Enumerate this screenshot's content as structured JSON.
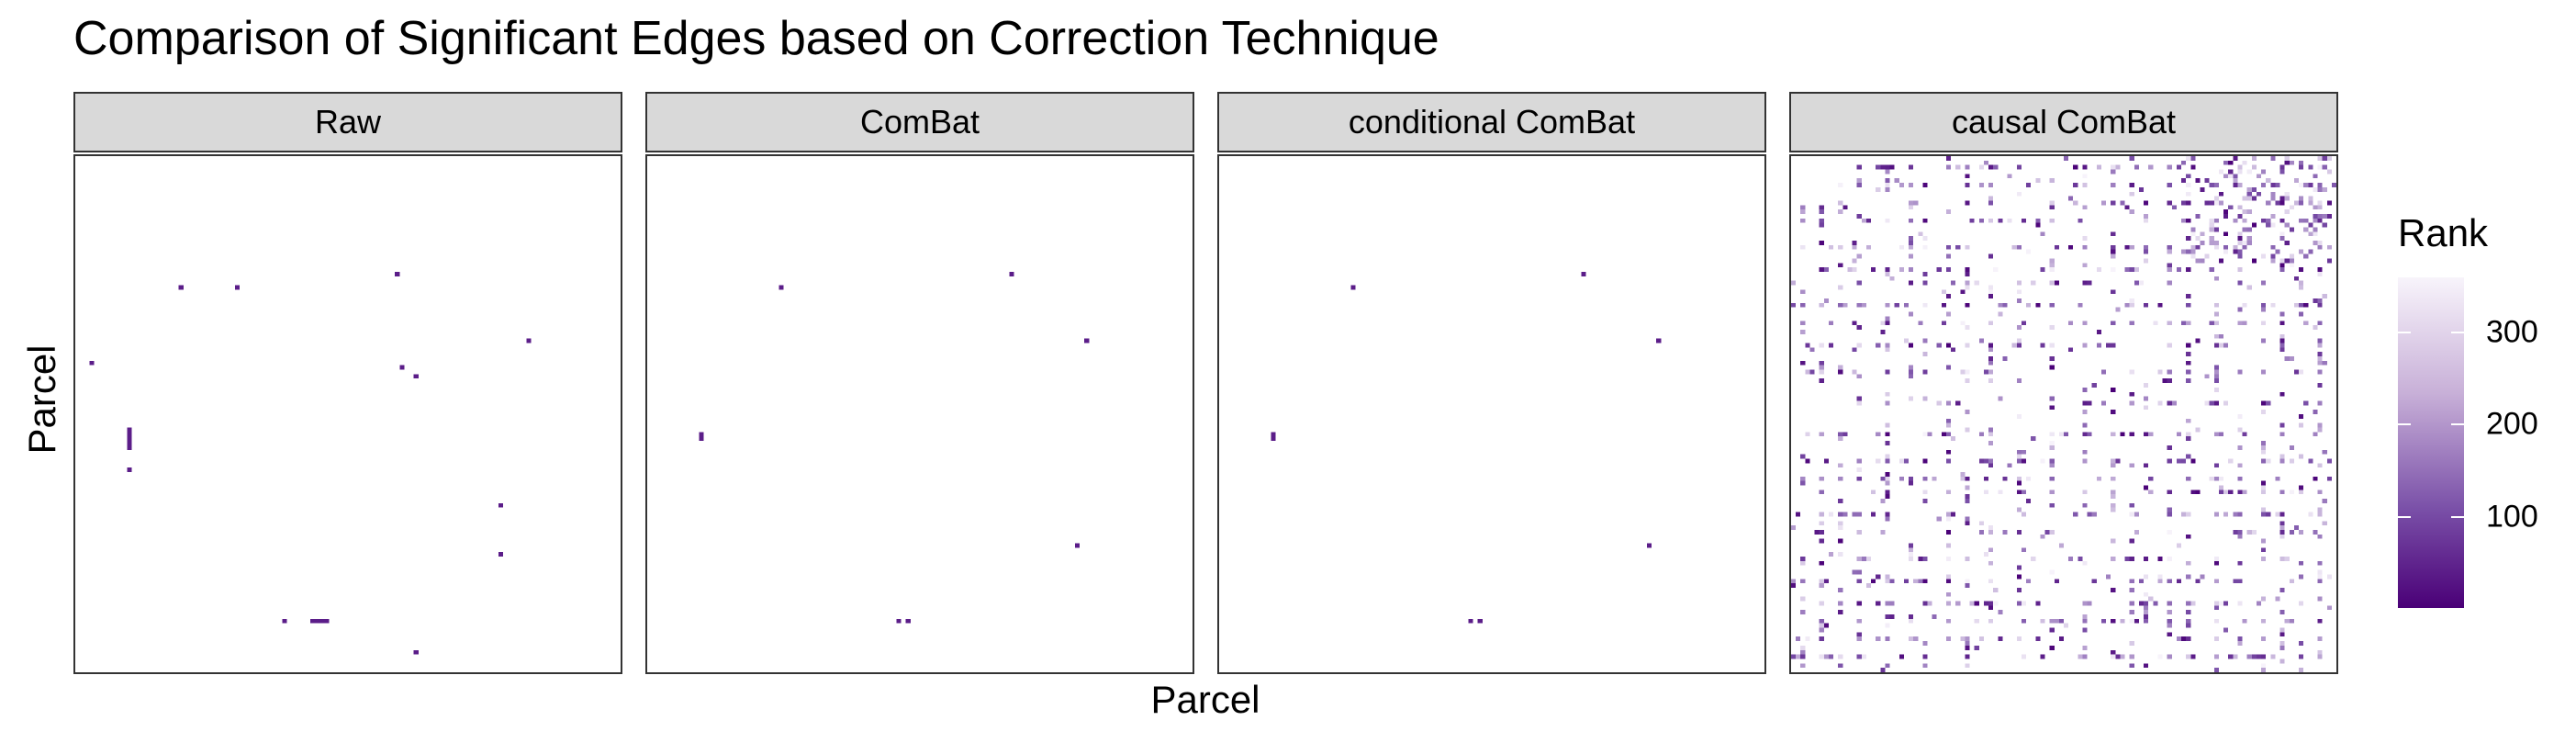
{
  "chart_data": {
    "type": "heatmap",
    "title": "Comparison of Significant Edges based on Correction Technique",
    "xlabel": "Parcel",
    "ylabel": "Parcel",
    "n_parcels": 116,
    "colorscale": {
      "name": "Rank",
      "low": "#4a0077",
      "mid": "#7a50a8",
      "high": "#f8f4fb",
      "range": [
        1,
        360
      ],
      "ticks": [
        100,
        200,
        300
      ]
    },
    "facets": [
      {
        "label": "Raw",
        "cells": [
          [
            22,
            29,
            40
          ],
          [
            34,
            29,
            40
          ],
          [
            68,
            26,
            40
          ],
          [
            96,
            41,
            40
          ],
          [
            3,
            46,
            40
          ],
          [
            69,
            47,
            40
          ],
          [
            72,
            49,
            40
          ],
          [
            11,
            61,
            40
          ],
          [
            11,
            62,
            40
          ],
          [
            11,
            63,
            40
          ],
          [
            11,
            64,
            40
          ],
          [
            11,
            65,
            40
          ],
          [
            11,
            70,
            40
          ],
          [
            90,
            78,
            40
          ],
          [
            90,
            89,
            40
          ],
          [
            44,
            104,
            40
          ],
          [
            50,
            104,
            40
          ],
          [
            51,
            104,
            40
          ],
          [
            52,
            104,
            40
          ],
          [
            53,
            104,
            40
          ],
          [
            72,
            111,
            40
          ]
        ]
      },
      {
        "label": "ComBat",
        "cells": [
          [
            28,
            29,
            40
          ],
          [
            77,
            26,
            40
          ],
          [
            93,
            41,
            40
          ],
          [
            11,
            62,
            40
          ],
          [
            11,
            63,
            40
          ],
          [
            91,
            87,
            40
          ],
          [
            53,
            104,
            40
          ],
          [
            55,
            104,
            40
          ]
        ]
      },
      {
        "label": "conditional ComBat",
        "cells": [
          [
            28,
            29,
            40
          ],
          [
            77,
            26,
            40
          ],
          [
            93,
            41,
            40
          ],
          [
            11,
            62,
            40
          ],
          [
            11,
            63,
            40
          ],
          [
            91,
            87,
            40
          ],
          [
            53,
            104,
            40
          ],
          [
            55,
            104,
            40
          ]
        ]
      },
      {
        "label": "causal ComBat",
        "cells": []
      }
    ]
  }
}
